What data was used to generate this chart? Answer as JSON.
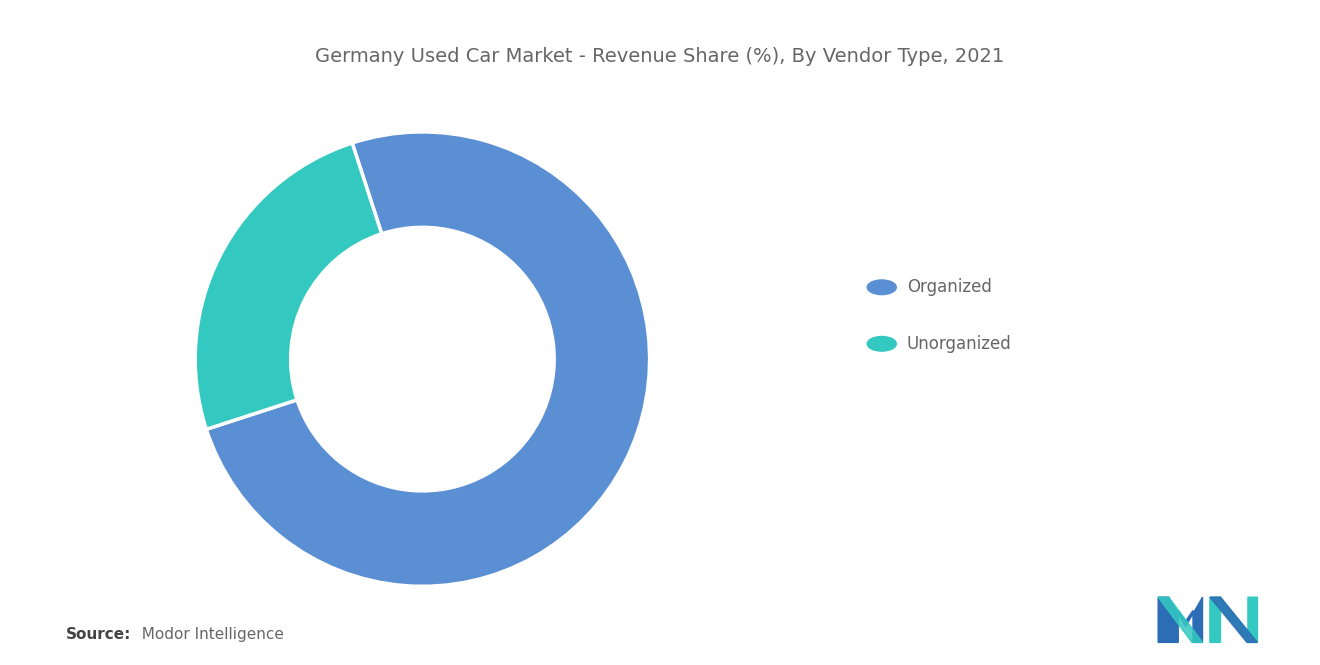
{
  "title": "Germany Used Car Market - Revenue Share (%), By Vendor Type, 2021",
  "title_fontsize": 14,
  "title_color": "#666666",
  "slices": [
    75,
    25
  ],
  "labels": [
    "Organized",
    "Unorganized"
  ],
  "colors": [
    "#5B8FD4",
    "#33C9C1"
  ],
  "donut_width": 0.42,
  "background_color": "#ffffff",
  "source_bold": "Source:",
  "source_normal": "  Modor Intelligence",
  "source_fontsize": 11,
  "legend_fontsize": 12,
  "legend_text_color": "#666666",
  "start_angle": 108
}
